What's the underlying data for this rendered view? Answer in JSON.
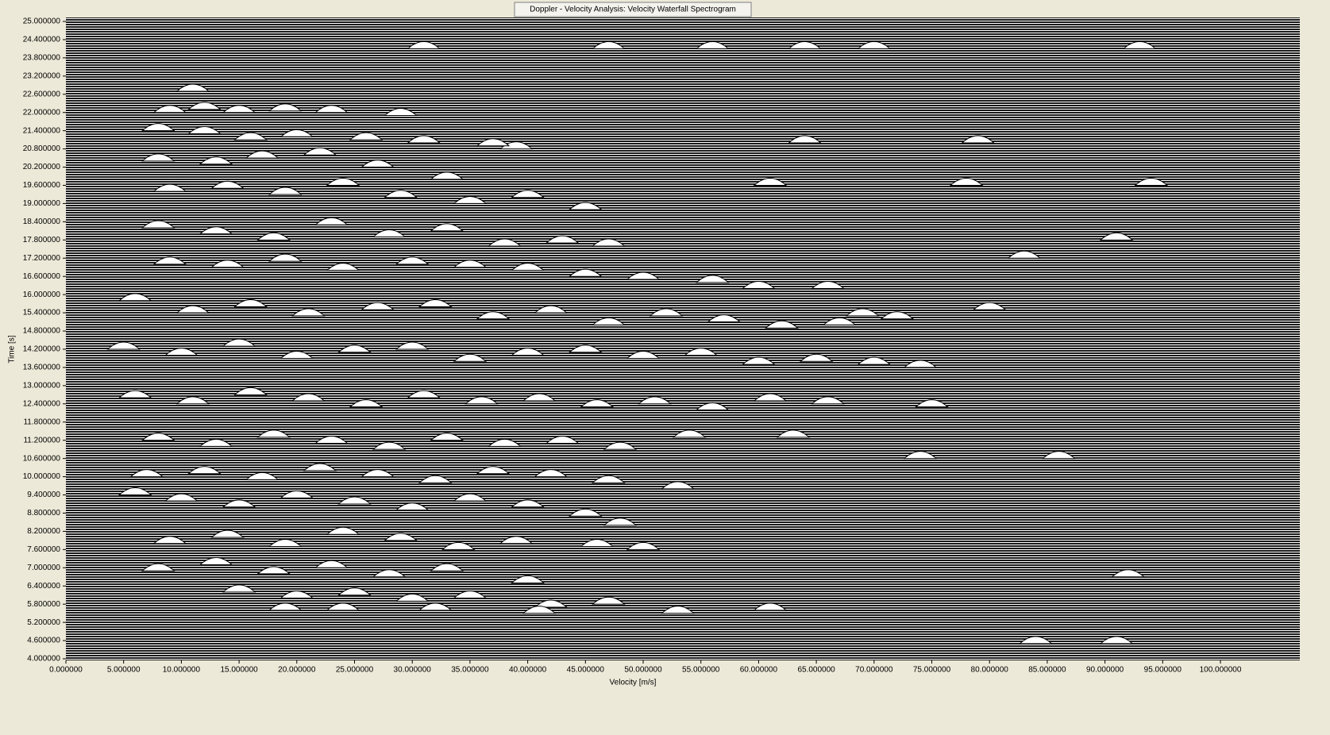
{
  "chart_data": {
    "type": "waterfall",
    "title": "Doppler - Velocity Analysis: Velocity Waterfall Spectrogram",
    "x_label": "Velocity [m/s]",
    "y_label": "Time [s]",
    "xlim": [
      0,
      100
    ],
    "ylim": [
      4,
      25
    ],
    "xticks": [
      {
        "value": 0,
        "label": "0.000000"
      },
      {
        "value": 5,
        "label": "5.000000"
      },
      {
        "value": 10,
        "label": "10.000000"
      },
      {
        "value": 15,
        "label": "15.000000"
      },
      {
        "value": 20,
        "label": "20.000000"
      },
      {
        "value": 25,
        "label": "25.000000"
      },
      {
        "value": 30,
        "label": "30.000000"
      },
      {
        "value": 35,
        "label": "35.000000"
      },
      {
        "value": 40,
        "label": "40.000000"
      },
      {
        "value": 45,
        "label": "45.000000"
      },
      {
        "value": 50,
        "label": "50.000000"
      },
      {
        "value": 55,
        "label": "55.000000"
      },
      {
        "value": 60,
        "label": "60.000000"
      },
      {
        "value": 65,
        "label": "65.000000"
      },
      {
        "value": 70,
        "label": "70.000000"
      },
      {
        "value": 75,
        "label": "75.000000"
      },
      {
        "value": 80,
        "label": "80.000000"
      },
      {
        "value": 85,
        "label": "85.000000"
      },
      {
        "value": 90,
        "label": "90.000000"
      },
      {
        "value": 95,
        "label": "95.000000"
      },
      {
        "value": 100,
        "label": "100.000000"
      }
    ],
    "yticks": [
      {
        "value": 4.0,
        "label": "4.000000"
      },
      {
        "value": 4.6,
        "label": "4.600000"
      },
      {
        "value": 5.2,
        "label": "5.200000"
      },
      {
        "value": 5.8,
        "label": "5.800000"
      },
      {
        "value": 6.4,
        "label": "6.400000"
      },
      {
        "value": 7.0,
        "label": "7.000000"
      },
      {
        "value": 7.6,
        "label": "7.600000"
      },
      {
        "value": 8.2,
        "label": "8.200000"
      },
      {
        "value": 8.8,
        "label": "8.800000"
      },
      {
        "value": 9.4,
        "label": "9.400000"
      },
      {
        "value": 10.0,
        "label": "10.000000"
      },
      {
        "value": 10.6,
        "label": "10.600000"
      },
      {
        "value": 11.2,
        "label": "11.200000"
      },
      {
        "value": 11.8,
        "label": "11.800000"
      },
      {
        "value": 12.4,
        "label": "12.400000"
      },
      {
        "value": 13.0,
        "label": "13.000000"
      },
      {
        "value": 13.6,
        "label": "13.600000"
      },
      {
        "value": 14.2,
        "label": "14.200000"
      },
      {
        "value": 14.8,
        "label": "14.800000"
      },
      {
        "value": 15.4,
        "label": "15.400000"
      },
      {
        "value": 16.0,
        "label": "16.000000"
      },
      {
        "value": 16.6,
        "label": "16.600000"
      },
      {
        "value": 17.2,
        "label": "17.200000"
      },
      {
        "value": 17.8,
        "label": "17.800000"
      },
      {
        "value": 18.4,
        "label": "18.400000"
      },
      {
        "value": 19.0,
        "label": "19.000000"
      },
      {
        "value": 19.6,
        "label": "19.600000"
      },
      {
        "value": 20.2,
        "label": "20.200000"
      },
      {
        "value": 20.8,
        "label": "20.800000"
      },
      {
        "value": 21.4,
        "label": "21.400000"
      },
      {
        "value": 22.0,
        "label": "22.000000"
      },
      {
        "value": 22.6,
        "label": "22.600000"
      },
      {
        "value": 23.2,
        "label": "23.200000"
      },
      {
        "value": 23.8,
        "label": "23.800000"
      },
      {
        "value": 24.4,
        "label": "24.400000"
      },
      {
        "value": 25.0,
        "label": "25.000000"
      }
    ],
    "color": "#ffffff",
    "x": [
      9,
      12,
      15,
      19,
      23,
      29,
      11,
      8,
      12,
      16,
      20,
      26,
      31,
      39,
      37,
      8,
      13,
      17,
      22,
      27,
      33,
      9,
      14,
      19,
      24,
      29,
      35,
      40,
      45,
      8,
      13,
      18,
      23,
      28,
      33,
      38,
      43,
      47,
      9,
      14,
      19,
      24,
      30,
      35,
      40,
      45,
      50,
      56,
      60,
      66,
      6,
      11,
      16,
      21,
      27,
      32,
      37,
      42,
      47,
      52,
      57,
      62,
      67,
      72,
      5,
      10,
      15,
      20,
      25,
      30,
      35,
      40,
      45,
      50,
      55,
      60,
      65,
      70,
      74,
      6,
      11,
      16,
      21,
      26,
      31,
      36,
      41,
      46,
      51,
      56,
      61,
      66,
      75,
      8,
      13,
      18,
      23,
      28,
      33,
      38,
      43,
      48,
      54,
      63,
      7,
      12,
      17,
      22,
      27,
      32,
      37,
      42,
      47,
      53,
      6,
      10,
      15,
      20,
      25,
      30,
      35,
      40,
      45,
      48,
      9,
      14,
      19,
      24,
      29,
      34,
      39,
      46,
      50,
      8,
      13,
      18,
      23,
      28,
      33,
      40,
      15,
      20,
      25,
      30,
      35,
      42,
      47,
      53,
      61,
      24,
      32,
      41,
      19,
      84,
      91,
      92,
      69,
      80,
      94,
      78,
      61,
      83,
      91,
      31,
      47,
      56,
      64,
      70,
      93,
      74,
      86,
      64,
      79
    ],
    "values": [
      22.0,
      22.1,
      22.0,
      22.05,
      22.0,
      21.9,
      22.7,
      21.4,
      21.3,
      21.1,
      21.2,
      21.1,
      21.0,
      20.8,
      20.9,
      20.4,
      20.3,
      20.5,
      20.6,
      20.2,
      19.8,
      19.4,
      19.5,
      19.3,
      19.6,
      19.2,
      19.0,
      19.2,
      18.8,
      18.2,
      18.0,
      17.8,
      18.3,
      17.9,
      18.1,
      17.6,
      17.7,
      17.6,
      17.0,
      16.9,
      17.1,
      16.8,
      17.0,
      16.9,
      16.8,
      16.6,
      16.5,
      16.4,
      16.2,
      16.2,
      15.8,
      15.4,
      15.6,
      15.3,
      15.5,
      15.6,
      15.2,
      15.4,
      15.0,
      15.3,
      15.1,
      14.9,
      15.0,
      15.2,
      14.2,
      14.0,
      14.3,
      13.9,
      14.1,
      14.2,
      13.8,
      14.0,
      14.1,
      13.9,
      14.0,
      13.7,
      13.8,
      13.7,
      13.6,
      12.6,
      12.4,
      12.7,
      12.5,
      12.3,
      12.6,
      12.4,
      12.5,
      12.3,
      12.4,
      12.2,
      12.5,
      12.4,
      12.3,
      11.2,
      11.0,
      11.3,
      11.1,
      10.9,
      11.2,
      11.0,
      11.1,
      10.9,
      11.3,
      11.3,
      10.0,
      10.1,
      9.9,
      10.2,
      10.0,
      9.8,
      10.1,
      10.0,
      9.8,
      9.6,
      9.4,
      9.2,
      9.0,
      9.3,
      9.1,
      8.9,
      9.2,
      9.0,
      8.7,
      8.4,
      7.8,
      8.0,
      7.7,
      8.1,
      7.9,
      7.6,
      7.8,
      7.7,
      7.6,
      6.9,
      7.1,
      6.8,
      7.0,
      6.7,
      6.9,
      6.5,
      6.2,
      6.0,
      6.1,
      5.9,
      6.0,
      5.7,
      5.8,
      5.5,
      5.6,
      5.6,
      5.6,
      5.5,
      5.6,
      4.5,
      4.5,
      6.7,
      15.3,
      15.5,
      19.6,
      19.6,
      19.6,
      17.2,
      17.8,
      24.1,
      24.1,
      24.1,
      24.1,
      24.1,
      24.1,
      10.6,
      10.6,
      21.0,
      21.0
    ]
  }
}
